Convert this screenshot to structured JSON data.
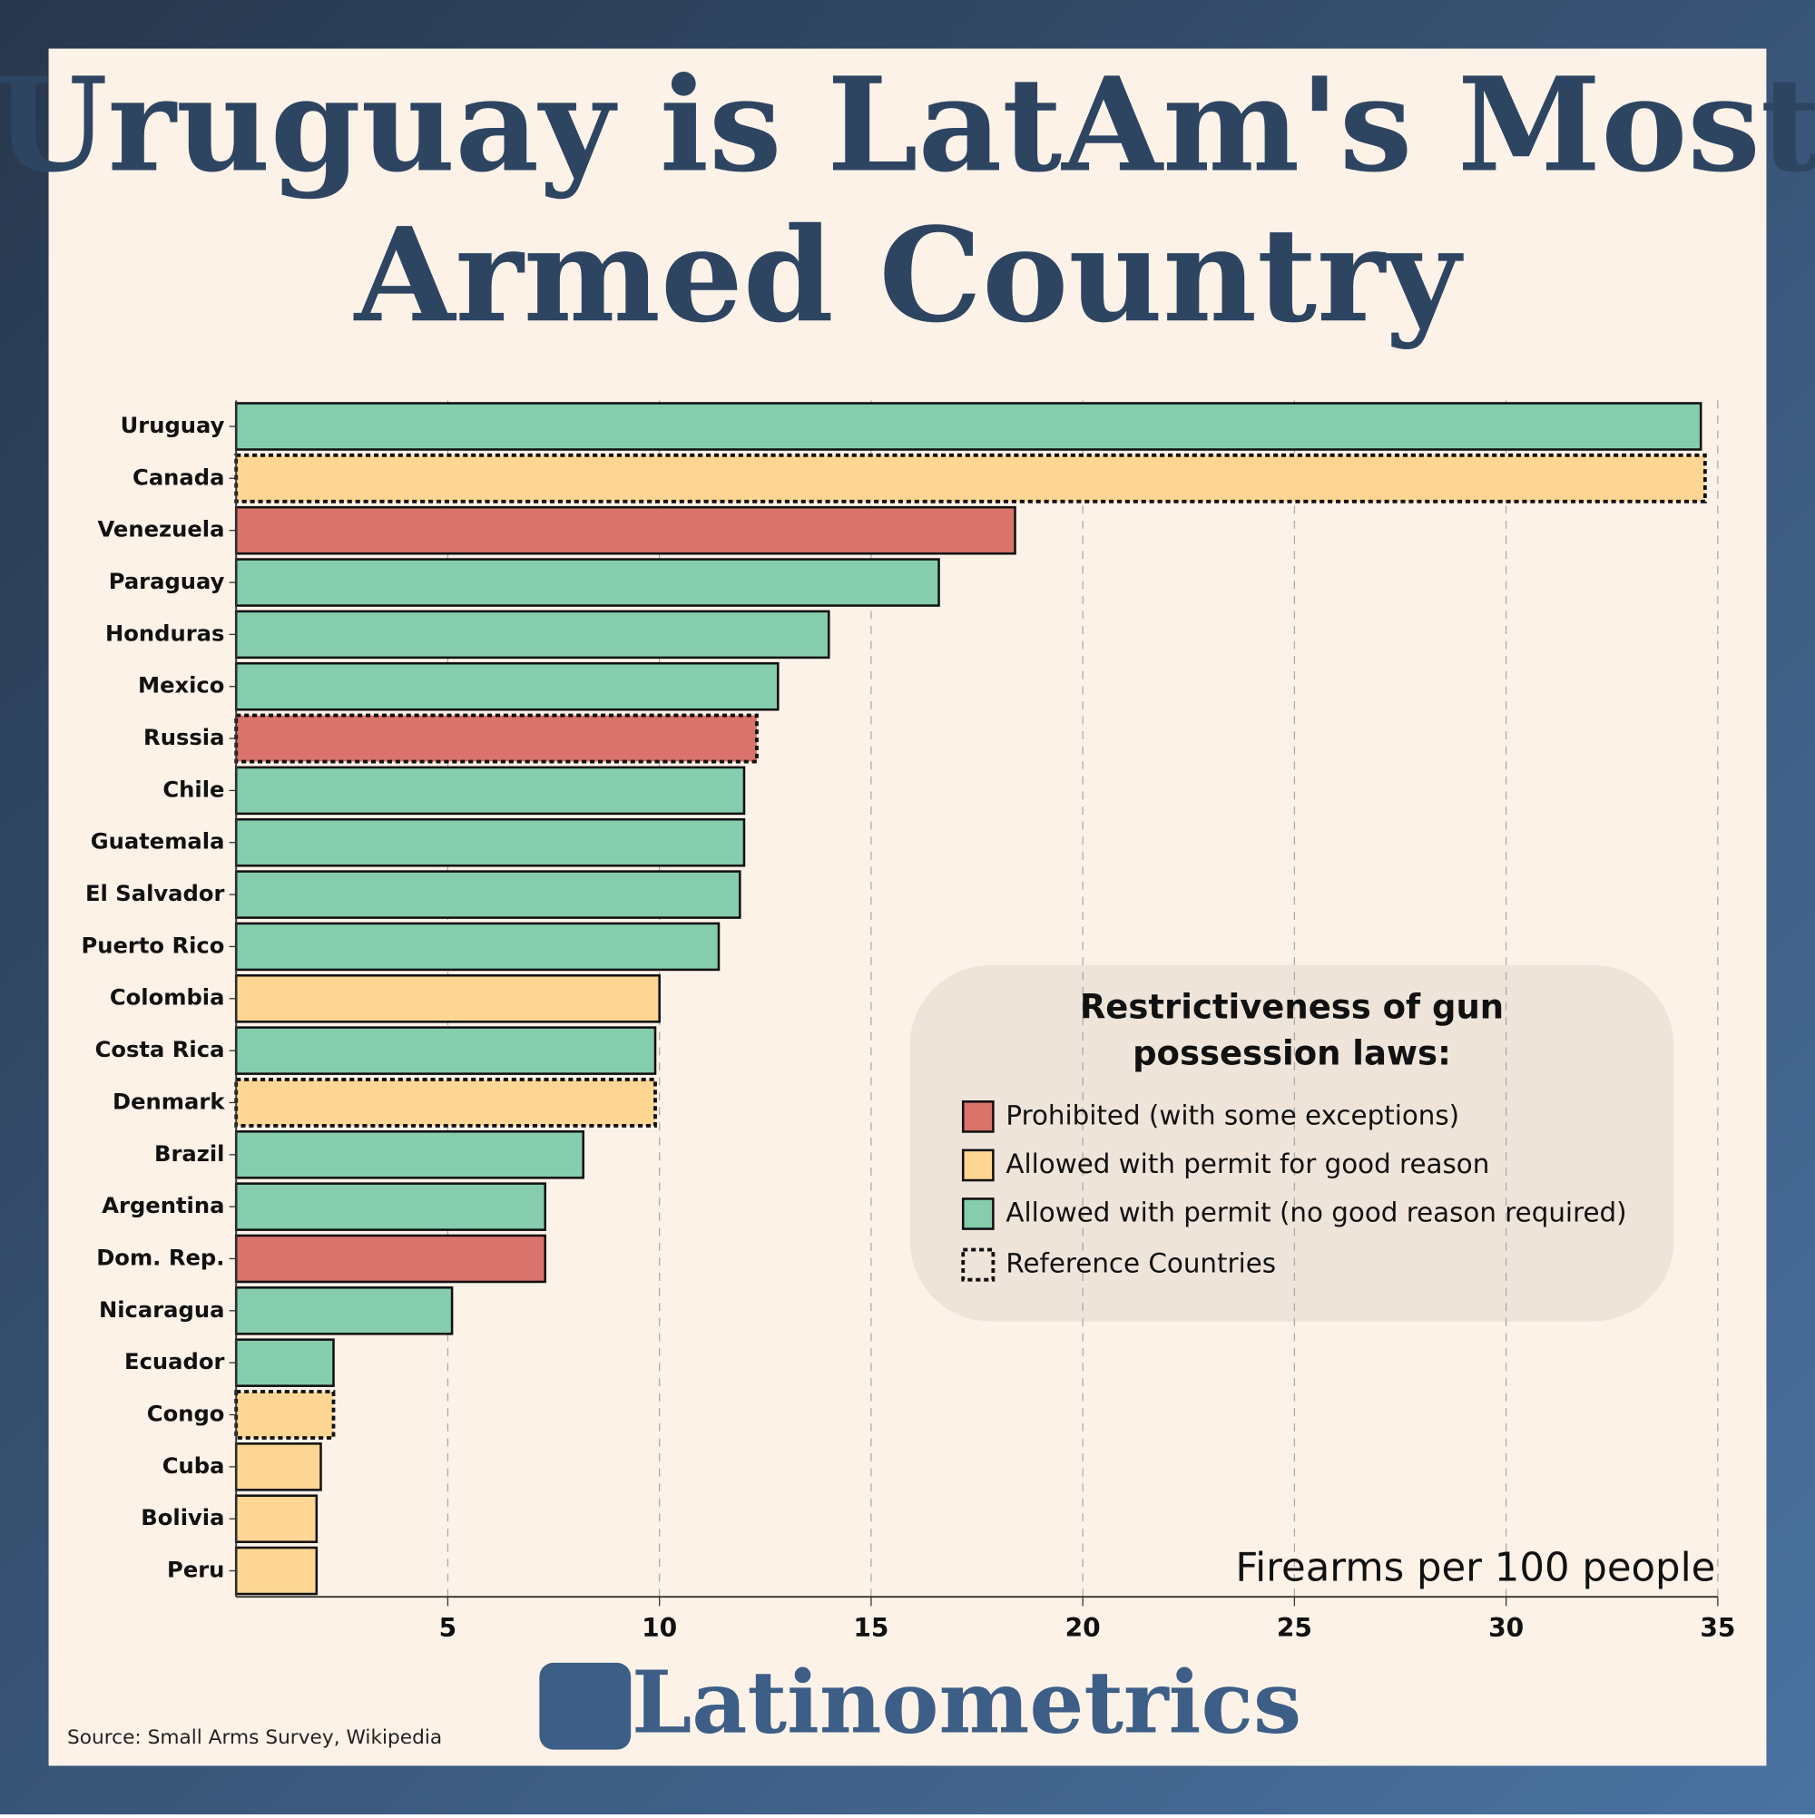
{
  "chart_data": {
    "type": "bar",
    "orientation": "horizontal",
    "title": [
      "Uruguay is LatAm's Most",
      "Armed Country"
    ],
    "categories": [
      "Uruguay",
      "Canada",
      "Venezuela",
      "Paraguay",
      "Honduras",
      "Mexico",
      "Russia",
      "Chile",
      "Guatemala",
      "El Salvador",
      "Puerto Rico",
      "Colombia",
      "Costa Rica",
      "Denmark",
      "Brazil",
      "Argentina",
      "Dom. Rep.",
      "Nicaragua",
      "Ecuador",
      "Congo",
      "Cuba",
      "Bolivia",
      "Peru"
    ],
    "values": [
      34.6,
      34.7,
      18.4,
      16.6,
      14.0,
      12.8,
      12.3,
      12.0,
      12.0,
      11.9,
      11.4,
      10.0,
      9.9,
      9.9,
      8.2,
      7.3,
      7.3,
      5.1,
      2.3,
      2.3,
      2.0,
      1.9,
      1.9
    ],
    "colors": [
      "#86cdad",
      "#fed694",
      "#d9736b",
      "#86cdad",
      "#86cdad",
      "#86cdad",
      "#d9736b",
      "#86cdad",
      "#86cdad",
      "#86cdad",
      "#86cdad",
      "#fed694",
      "#86cdad",
      "#fed694",
      "#86cdad",
      "#86cdad",
      "#d9736b",
      "#86cdad",
      "#86cdad",
      "#fed694",
      "#fed694",
      "#fed694",
      "#fed694"
    ],
    "reference": [
      false,
      true,
      false,
      false,
      false,
      false,
      true,
      false,
      false,
      false,
      false,
      false,
      false,
      true,
      false,
      false,
      false,
      false,
      false,
      true,
      false,
      false,
      false
    ],
    "xlim": [
      0,
      35
    ],
    "xticks": [
      5,
      10,
      15,
      20,
      25,
      30,
      35
    ],
    "grid": true,
    "x_label": "Firearms per 100 people",
    "legend_title": [
      "Restrictiveness of gun",
      "possession laws:"
    ],
    "legend": [
      {
        "label": "Prohibited (with some exceptions)",
        "color": "#d9736b"
      },
      {
        "label": "Allowed with permit for good reason",
        "color": "#fed694"
      },
      {
        "label": "Allowed with permit (no good reason required)",
        "color": "#86cdad"
      }
    ],
    "legend_reference": "Reference Countries"
  },
  "source": "Source: Small Arms Survey, Wikipedia",
  "brand": "Latinometrics"
}
